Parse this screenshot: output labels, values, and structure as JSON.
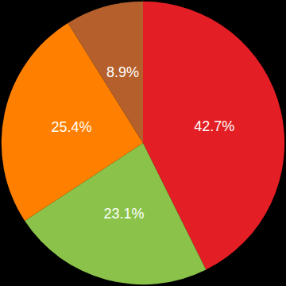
{
  "chart_data": {
    "type": "pie",
    "values": [
      42.7,
      23.1,
      25.4,
      8.9
    ],
    "value_labels": [
      "42.7%",
      "23.1%",
      "25.4%",
      "8.9%"
    ],
    "colors": [
      "#e31e24",
      "#8bc34a",
      "#ff8000",
      "#b5602c"
    ],
    "data_labels": true
  }
}
